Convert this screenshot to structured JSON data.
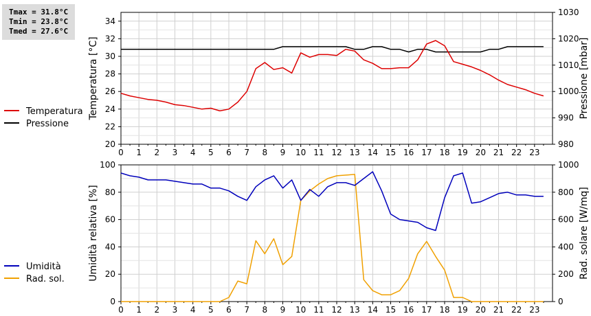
{
  "stats": {
    "tmax": "Tmax = 31.8°C",
    "tmin": "Tmin = 23.8°C",
    "tmed": "Tmed = 27.6°C"
  },
  "chart_data": [
    {
      "type": "line",
      "title": "",
      "xlabel": "",
      "ylabel": "Temperatura [°C]",
      "ylabel_right": "Pressione [mbar]",
      "xlim": [
        0,
        24
      ],
      "xticks": [
        0,
        1,
        2,
        3,
        4,
        5,
        6,
        7,
        8,
        9,
        10,
        11,
        12,
        13,
        14,
        15,
        16,
        17,
        18,
        19,
        20,
        21,
        22,
        23
      ],
      "ylim": [
        20,
        35
      ],
      "yticks": [
        20,
        22,
        24,
        26,
        28,
        30,
        32,
        34
      ],
      "ylim_right": [
        980,
        1030
      ],
      "yticks_right": [
        980,
        990,
        1000,
        1010,
        1020,
        1030
      ],
      "grid": true,
      "legend_position": "left",
      "series": [
        {
          "name": "Temperatura",
          "axis": "left",
          "color": "#dd0000",
          "x": [
            0,
            0.5,
            1,
            1.5,
            2,
            2.5,
            3,
            3.5,
            4,
            4.5,
            5,
            5.5,
            6,
            6.5,
            7,
            7.5,
            8,
            8.5,
            9,
            9.5,
            10,
            10.5,
            11,
            11.5,
            12,
            12.5,
            13,
            13.5,
            14,
            14.5,
            15,
            15.5,
            16,
            16.5,
            17,
            17.5,
            18,
            18.5,
            19,
            19.5,
            20,
            20.5,
            21,
            21.5,
            22,
            22.5,
            23,
            23.5
          ],
          "y": [
            25.8,
            25.5,
            25.3,
            25.1,
            25.0,
            24.8,
            24.5,
            24.4,
            24.2,
            24.0,
            24.1,
            23.8,
            24.0,
            24.8,
            26.0,
            28.6,
            29.3,
            28.5,
            28.7,
            28.1,
            30.4,
            29.9,
            30.2,
            30.2,
            30.1,
            30.8,
            30.6,
            29.6,
            29.2,
            28.6,
            28.6,
            28.7,
            28.7,
            29.6,
            31.4,
            31.8,
            31.2,
            29.4,
            29.1,
            28.8,
            28.4,
            27.9,
            27.3,
            26.8,
            26.5,
            26.2,
            25.8,
            25.5
          ]
        },
        {
          "name": "Pressione",
          "axis": "right",
          "color": "#000000",
          "x": [
            0,
            0.5,
            1,
            1.5,
            2,
            2.5,
            3,
            3.5,
            4,
            4.5,
            5,
            5.5,
            6,
            6.5,
            7,
            7.5,
            8,
            8.5,
            9,
            9.5,
            10,
            10.5,
            11,
            11.5,
            12,
            12.5,
            13,
            13.5,
            14,
            14.5,
            15,
            15.5,
            16,
            16.5,
            17,
            17.5,
            18,
            18.5,
            19,
            19.5,
            20,
            20.5,
            21,
            21.5,
            22,
            22.5,
            23,
            23.5
          ],
          "y": [
            1016,
            1016,
            1016,
            1016,
            1016,
            1016,
            1016,
            1016,
            1016,
            1016,
            1016,
            1016,
            1016,
            1016,
            1016,
            1016,
            1016,
            1016,
            1017,
            1017,
            1017,
            1017,
            1017,
            1017,
            1017,
            1017,
            1016,
            1016,
            1017,
            1017,
            1016,
            1016,
            1015,
            1016,
            1016,
            1015,
            1015,
            1015,
            1015,
            1015,
            1015,
            1016,
            1016,
            1017,
            1017,
            1017,
            1017,
            1017
          ]
        }
      ]
    },
    {
      "type": "line",
      "title": "",
      "xlabel": "",
      "ylabel": "Umidità relativa [%]",
      "ylabel_right": "Rad. solare [W/mq]",
      "xlim": [
        0,
        24
      ],
      "xticks": [
        0,
        1,
        2,
        3,
        4,
        5,
        6,
        7,
        8,
        9,
        10,
        11,
        12,
        13,
        14,
        15,
        16,
        17,
        18,
        19,
        20,
        21,
        22,
        23
      ],
      "ylim": [
        0,
        100
      ],
      "yticks": [
        0,
        20,
        40,
        60,
        80,
        100
      ],
      "ylim_right": [
        0,
        1000
      ],
      "yticks_right": [
        0,
        200,
        400,
        600,
        800,
        1000
      ],
      "grid": true,
      "legend_position": "left",
      "series": [
        {
          "name": "Umidità",
          "axis": "left",
          "color": "#0000bb",
          "x": [
            0,
            0.5,
            1,
            1.5,
            2,
            2.5,
            3,
            3.5,
            4,
            4.5,
            5,
            5.5,
            6,
            6.5,
            7,
            7.5,
            8,
            8.5,
            9,
            9.5,
            10,
            10.5,
            11,
            11.5,
            12,
            12.5,
            13,
            13.5,
            14,
            14.5,
            15,
            15.5,
            16,
            16.5,
            17,
            17.5,
            18,
            18.5,
            19,
            19.5,
            20,
            20.5,
            21,
            21.5,
            22,
            22.5,
            23,
            23.5
          ],
          "y": [
            94,
            92,
            91,
            89,
            89,
            89,
            88,
            87,
            86,
            86,
            83,
            83,
            81,
            77,
            74,
            84,
            89,
            92,
            83,
            89,
            74,
            82,
            77,
            84,
            87,
            87,
            85,
            90,
            95,
            81,
            64,
            60,
            59,
            58,
            54,
            52,
            76,
            92,
            94,
            72,
            73,
            76,
            79,
            80,
            78,
            78,
            77,
            77
          ]
        },
        {
          "name": "Rad. sol.",
          "axis": "right",
          "color": "#f0a000",
          "x": [
            0,
            0.5,
            1,
            1.5,
            2,
            2.5,
            3,
            3.5,
            4,
            4.5,
            5,
            5.5,
            6,
            6.5,
            7,
            7.5,
            8,
            8.5,
            9,
            9.5,
            10,
            10.5,
            11,
            11.5,
            12,
            12.5,
            13,
            13.5,
            14,
            14.5,
            15,
            15.5,
            16,
            16.5,
            17,
            17.5,
            18,
            18.5,
            19,
            19.5,
            20,
            20.5,
            21,
            21.5,
            22,
            22.5,
            23,
            23.5
          ],
          "y": [
            0,
            0,
            0,
            0,
            0,
            0,
            0,
            0,
            0,
            0,
            0,
            0,
            30,
            150,
            130,
            445,
            350,
            460,
            270,
            330,
            740,
            810,
            860,
            900,
            920,
            925,
            930,
            160,
            80,
            50,
            50,
            80,
            170,
            350,
            440,
            330,
            230,
            30,
            30,
            0,
            0,
            0,
            0,
            0,
            0,
            0,
            0,
            0
          ]
        }
      ]
    }
  ]
}
